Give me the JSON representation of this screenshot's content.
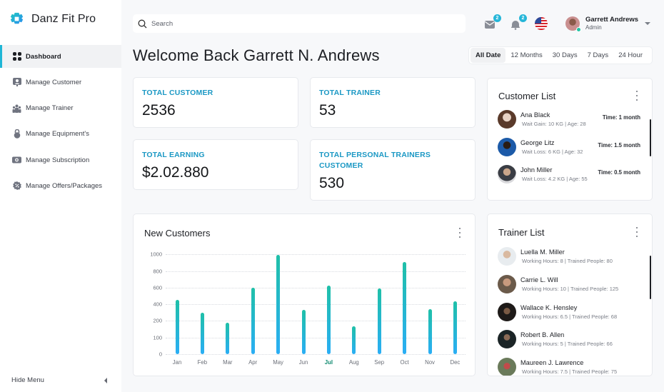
{
  "app": {
    "name": "Danz Fit Pro"
  },
  "sidebar": {
    "items": [
      {
        "label": "Dashboard",
        "icon": "grid-icon",
        "active": true
      },
      {
        "label": "Manage Customer",
        "icon": "customer-icon",
        "active": false
      },
      {
        "label": "Manage Trainer",
        "icon": "team-icon",
        "active": false
      },
      {
        "label": "Manage Equipment's",
        "icon": "kettlebell-icon",
        "active": false
      },
      {
        "label": "Manage Subscription",
        "icon": "ticket-icon",
        "active": false
      },
      {
        "label": "Manage Offers/Packages",
        "icon": "discount-icon",
        "active": false
      }
    ],
    "hide_menu_label": "Hide Menu"
  },
  "topbar": {
    "search_placeholder": "Search",
    "mail_badge": "2",
    "notification_badge": "2",
    "language_flag": "us-flag-icon",
    "user": {
      "name": "Garrett Andrews",
      "role": "Admin"
    }
  },
  "page": {
    "title": "Welcome Back Garrett N. Andrews",
    "filters": [
      "All Date",
      "12 Months",
      "30 Days",
      "7 Days",
      "24 Hour"
    ],
    "active_filter": "All Date"
  },
  "stats": [
    {
      "label": "TOTAL CUSTOMER",
      "value": "2536"
    },
    {
      "label": "TOTAL TRAINER",
      "value": "53"
    },
    {
      "label": "TOTAL EARNING",
      "value": "$2.02.880"
    },
    {
      "label": "TOTAL PERSONAL TRAINERS CUSTOMER",
      "value": "530"
    }
  ],
  "customer_list": {
    "title": "Customer List",
    "items": [
      {
        "name": "Ana Black",
        "detail": "Wait Gain: 10 KG  |  Age: 28",
        "time": "Time: 1 month"
      },
      {
        "name": "George Litz",
        "detail": "Wait Loss: 6 KG  |  Age: 32",
        "time": "Time: 1.5 month"
      },
      {
        "name": "John Miller",
        "detail": "Wait Loss: 4.2 KG  |  Age: 55",
        "time": "Time: 0.5 month"
      }
    ]
  },
  "trainer_list": {
    "title": "Trainer List",
    "items": [
      {
        "name": "Luella M. Miller",
        "detail": "Working Hours: 8  |  Trained People: 80"
      },
      {
        "name": "Carrie L. Will",
        "detail": "Working Hours: 10  |  Trained People: 125"
      },
      {
        "name": "Wallace K. Hensley",
        "detail": "Working Hours: 6.5  |  Trained People: 68"
      },
      {
        "name": "Robert B. Allen",
        "detail": "Working Hours: 5  |  Trained People: 66"
      },
      {
        "name": "Maureen J. Lawrence",
        "detail": "Working Hours: 7.5  |  Trained People: 75"
      }
    ]
  },
  "new_customers": {
    "title": "New Customers"
  },
  "colors": {
    "accent": "#1fb6d6",
    "stat_label": "#1b98c4",
    "bar_top": "#1fc0a8",
    "bar_bottom": "#2aaef5",
    "active_month": "#0e8a6f"
  },
  "chart_data": {
    "type": "bar",
    "title": "New Customers",
    "categories": [
      "Jan",
      "Feb",
      "Mar",
      "Apr",
      "May",
      "Jun",
      "Jul",
      "Aug",
      "Sep",
      "Oct",
      "Nov",
      "Dec"
    ],
    "values": [
      455,
      300,
      190,
      595,
      990,
      335,
      620,
      167,
      590,
      905,
      340,
      437
    ],
    "y_ticks": [
      0,
      100,
      200,
      400,
      600,
      800,
      1000
    ],
    "highlighted_category": "Jul",
    "xlabel": "",
    "ylabel": "",
    "ylim": [
      0,
      1000
    ],
    "grid": true,
    "legend": false
  }
}
